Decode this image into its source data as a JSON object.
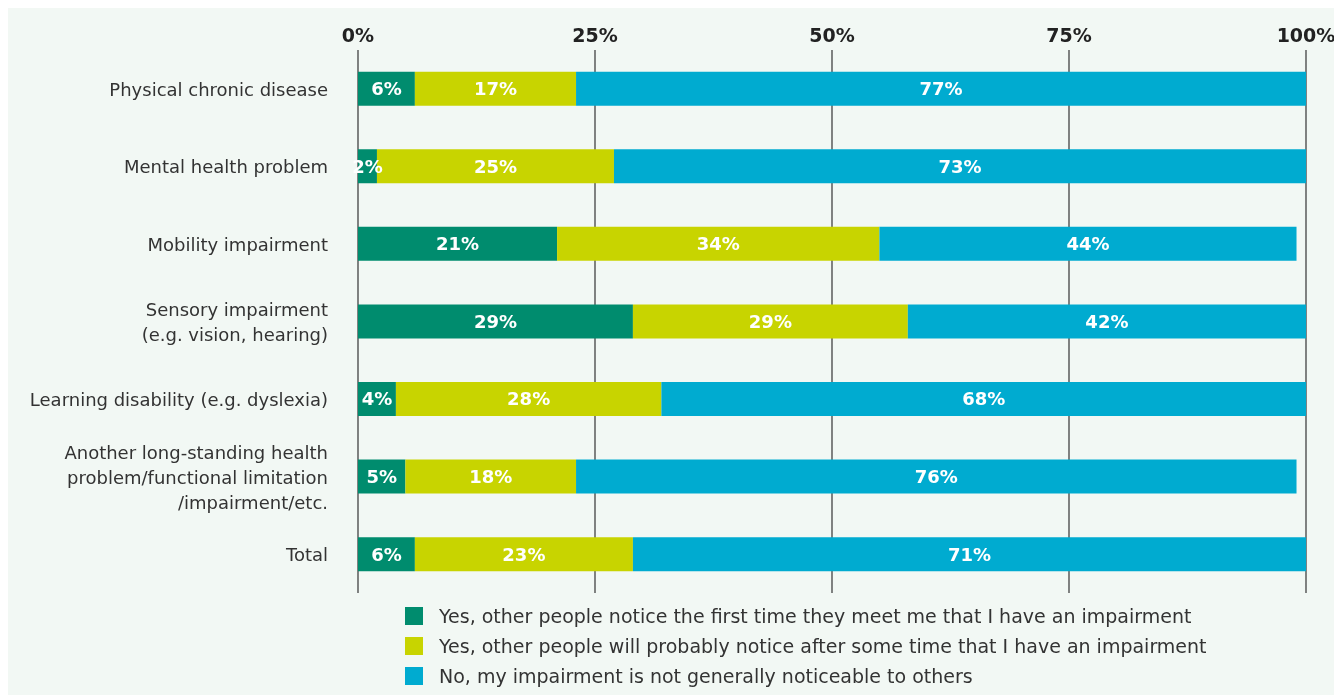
{
  "chart_data": {
    "type": "bar",
    "orientation": "horizontal",
    "stacked": true,
    "categories": [
      "Physical chronic disease",
      "Mental health problem",
      "Mobility impairment",
      "Sensory impairment\n(e.g. vision, hearing)",
      "Learning disability (e.g. dyslexia)",
      "Another long-standing health\nproblem/functional limitation\n/impairment/etc.",
      "Total"
    ],
    "series": [
      {
        "name": "Yes, other people notice the first time they meet me that I have an impairment",
        "color": "#008c6e",
        "values": [
          6,
          2,
          21,
          29,
          4,
          5,
          6
        ],
        "value_labels": [
          "6%",
          "2%",
          "21%",
          "29%",
          "4%",
          "5%",
          "6%"
        ]
      },
      {
        "name": "Yes, other people will probably notice after some time that I have an impairment",
        "color": "#c8d400",
        "values": [
          17,
          25,
          34,
          29,
          28,
          18,
          23
        ],
        "value_labels": [
          "17%",
          "25%",
          "34%",
          "29%",
          "28%",
          "18%",
          "23%"
        ]
      },
      {
        "name": "No, my impairment is not generally noticeable to others",
        "color": "#00abd0",
        "values": [
          77,
          73,
          44,
          42,
          68,
          76,
          71
        ],
        "value_labels": [
          "77%",
          "73%",
          "44%",
          "42%",
          "68%",
          "76%",
          "71%"
        ]
      }
    ],
    "xlim": [
      0,
      100
    ],
    "xticks": [
      {
        "value": 0,
        "label": "0%"
      },
      {
        "value": 25,
        "label": "25%"
      },
      {
        "value": 50,
        "label": "50%"
      },
      {
        "value": 75,
        "label": "75%"
      },
      {
        "value": 100,
        "label": "100%"
      }
    ],
    "grid": "x",
    "legend": "bottom"
  }
}
